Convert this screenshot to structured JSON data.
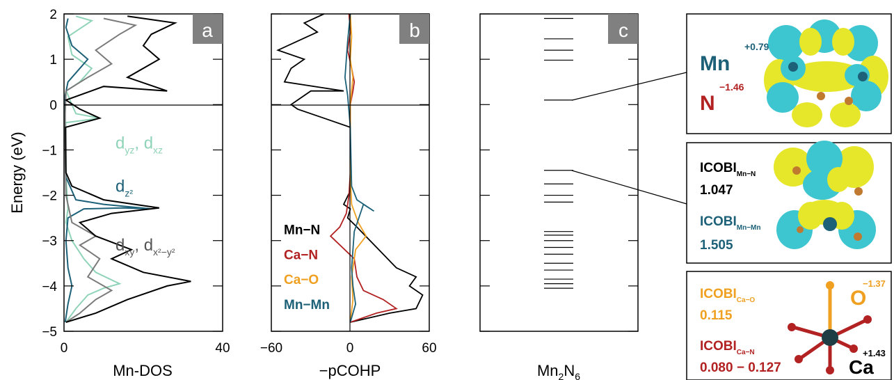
{
  "chart_data": [
    {
      "panel": "a",
      "type": "line",
      "xlabel": "Mn-DOS",
      "ylabel": "Energy (eV)",
      "xlim": [
        0,
        40
      ],
      "ylim": [
        -5,
        2
      ],
      "xticks": [
        "0",
        "40"
      ],
      "yticks": [
        "−5",
        "−4",
        "−3",
        "−2",
        "−1",
        "0",
        "1",
        "2"
      ],
      "fermi_line": 0,
      "colors": {
        "dyz_dxz": "#8fd3b8",
        "dz2": "#1c6178",
        "dxy": "#7a7a7a",
        "total": "#000000"
      },
      "series": [
        {
          "label": "d_yz, d_xz",
          "color": "#8fd3b8",
          "points": [
            [
              0.5,
              -4.8
            ],
            [
              3,
              -4.5
            ],
            [
              6,
              -4.2
            ],
            [
              10,
              -4.05
            ],
            [
              14,
              -3.95
            ],
            [
              8,
              -3.7
            ],
            [
              5,
              -3.4
            ],
            [
              2,
              -3.0
            ],
            [
              0.5,
              -2.6
            ],
            [
              1,
              -2.3
            ],
            [
              0.5,
              -1.6
            ],
            [
              0.4,
              -0.4
            ],
            [
              9,
              -0.3
            ],
            [
              3,
              -0.2
            ],
            [
              1.5,
              0.1
            ],
            [
              0.6,
              0.3
            ],
            [
              4,
              0.5
            ],
            [
              7,
              0.8
            ],
            [
              2,
              1.1
            ],
            [
              1,
              1.5
            ],
            [
              7,
              1.85
            ],
            [
              3,
              1.95
            ]
          ]
        },
        {
          "label": "d_z2",
          "color": "#1c6178",
          "points": [
            [
              0.3,
              -4.8
            ],
            [
              1,
              -4.4
            ],
            [
              2,
              -4.0
            ],
            [
              1,
              -3.6
            ],
            [
              0.5,
              -3.0
            ],
            [
              1,
              -2.5
            ],
            [
              5,
              -2.3
            ],
            [
              15,
              -2.28
            ],
            [
              22,
              -2.3
            ],
            [
              10,
              -2.2
            ],
            [
              3,
              -2.1
            ],
            [
              0.5,
              -1.6
            ],
            [
              0.2,
              -0.5
            ],
            [
              0.3,
              0.2
            ],
            [
              1,
              0.5
            ],
            [
              4,
              0.8
            ],
            [
              6,
              1.0
            ],
            [
              2,
              1.3
            ],
            [
              0.5,
              1.7
            ],
            [
              1,
              1.9
            ]
          ]
        },
        {
          "label": "d_xy, d_x2-y2",
          "color": "#7a7a7a",
          "points": [
            [
              0.5,
              -4.8
            ],
            [
              4,
              -4.6
            ],
            [
              8,
              -4.3
            ],
            [
              12,
              -4.1
            ],
            [
              6,
              -3.8
            ],
            [
              9,
              -3.4
            ],
            [
              4,
              -3.1
            ],
            [
              8,
              -2.9
            ],
            [
              2,
              -2.6
            ],
            [
              0.5,
              -2.0
            ],
            [
              0.3,
              -1.0
            ],
            [
              0.3,
              -0.2
            ],
            [
              0.5,
              0.3
            ],
            [
              6,
              0.6
            ],
            [
              12,
              0.9
            ],
            [
              8,
              1.2
            ],
            [
              14,
              1.55
            ],
            [
              18,
              1.75
            ],
            [
              10,
              1.9
            ]
          ]
        },
        {
          "label": "total",
          "color": "#000000",
          "points": [
            [
              0.5,
              -4.8
            ],
            [
              8,
              -4.6
            ],
            [
              16,
              -4.3
            ],
            [
              26,
              -4.0
            ],
            [
              32,
              -3.9
            ],
            [
              20,
              -3.7
            ],
            [
              12,
              -3.4
            ],
            [
              17,
              -3.2
            ],
            [
              8,
              -2.9
            ],
            [
              4,
              -2.6
            ],
            [
              12,
              -2.4
            ],
            [
              24,
              -2.28
            ],
            [
              10,
              -2.1
            ],
            [
              2,
              -1.8
            ],
            [
              0.5,
              -1.5
            ],
            [
              0.4,
              -0.5
            ],
            [
              9,
              -0.3
            ],
            [
              4,
              -0.1
            ],
            [
              0.5,
              0.1
            ],
            [
              10,
              0.4
            ],
            [
              26,
              0.3
            ],
            [
              16,
              0.6
            ],
            [
              24,
              1.0
            ],
            [
              20,
              1.3
            ],
            [
              22,
              1.55
            ],
            [
              28,
              1.8
            ],
            [
              16,
              1.95
            ]
          ]
        }
      ],
      "labels": [
        {
          "base": "d",
          "sub1": "yz",
          "sep": ", d",
          "sub2": "xz",
          "color": "#8fd3b8",
          "x": 14,
          "y": -0.85
        },
        {
          "base": "d",
          "sub1": "z²",
          "sep": "",
          "sub2": "",
          "color": "#1c6178",
          "x": 14,
          "y": -1.8
        },
        {
          "base": "d",
          "sub1": "xy",
          "sep": ", d",
          "sub2": "x²−y²",
          "color": "#555555",
          "x": 14,
          "y": -3.1
        }
      ]
    },
    {
      "panel": "b",
      "type": "line",
      "xlabel": "−pCOHP",
      "xlim": [
        -60,
        60
      ],
      "ylim": [
        -5,
        2
      ],
      "xticks": [
        "−60",
        "0",
        "60"
      ],
      "fermi_line": 0,
      "series": [
        {
          "name": "Mn−N",
          "color": "#000000",
          "points": [
            [
              0,
              -4.8
            ],
            [
              30,
              -4.6
            ],
            [
              50,
              -4.5
            ],
            [
              55,
              -4.2
            ],
            [
              45,
              -4.0
            ],
            [
              50,
              -3.8
            ],
            [
              35,
              -3.6
            ],
            [
              25,
              -3.3
            ],
            [
              15,
              -3.0
            ],
            [
              5,
              -2.7
            ],
            [
              -2,
              -2.5
            ],
            [
              0,
              -2.3
            ],
            [
              -5,
              -2.2
            ],
            [
              0,
              -1.9
            ],
            [
              0,
              -0.5
            ],
            [
              -20,
              -0.3
            ],
            [
              -40,
              -0.1
            ],
            [
              -45,
              0.0
            ],
            [
              -30,
              0.3
            ],
            [
              -5,
              0.3
            ],
            [
              -50,
              0.5
            ],
            [
              -45,
              0.8
            ],
            [
              -35,
              1.0
            ],
            [
              -55,
              1.2
            ],
            [
              -40,
              1.4
            ],
            [
              -25,
              1.6
            ],
            [
              -35,
              1.8
            ],
            [
              -20,
              2.0
            ]
          ]
        },
        {
          "name": "Ca−N",
          "color": "#b22222",
          "points": [
            [
              0,
              -4.8
            ],
            [
              20,
              -4.6
            ],
            [
              35,
              -4.5
            ],
            [
              25,
              -4.3
            ],
            [
              10,
              -4.1
            ],
            [
              5,
              -3.8
            ],
            [
              3,
              -3.4
            ],
            [
              -15,
              -2.9
            ],
            [
              -8,
              -2.7
            ],
            [
              -3,
              -2.4
            ],
            [
              -1,
              -2.0
            ],
            [
              0,
              -1.5
            ],
            [
              0,
              0.0
            ],
            [
              2,
              0.3
            ],
            [
              3,
              0.5
            ],
            [
              1,
              0.8
            ],
            [
              -2,
              1.2
            ],
            [
              0,
              1.6
            ],
            [
              -1,
              2.0
            ]
          ]
        },
        {
          "name": "Ca−O",
          "color": "#f0a020",
          "points": [
            [
              0,
              -4.8
            ],
            [
              2,
              -4.3
            ],
            [
              1,
              -3.8
            ],
            [
              4,
              -3.2
            ],
            [
              12,
              -2.9
            ],
            [
              6,
              -2.6
            ],
            [
              1,
              -2.2
            ],
            [
              0,
              -1.6
            ],
            [
              0,
              0.0
            ],
            [
              1,
              0.3
            ],
            [
              2,
              0.6
            ],
            [
              0,
              1.0
            ],
            [
              1,
              1.5
            ],
            [
              0,
              2.0
            ]
          ]
        },
        {
          "name": "Mn−Mn",
          "color": "#1c6178",
          "points": [
            [
              0,
              -4.8
            ],
            [
              4,
              -4.4
            ],
            [
              2,
              -4.0
            ],
            [
              1,
              -3.6
            ],
            [
              3,
              -2.8
            ],
            [
              10,
              -2.2
            ],
            [
              18,
              -2.35
            ],
            [
              5,
              -2.1
            ],
            [
              1,
              -1.8
            ],
            [
              0,
              -0.5
            ],
            [
              -2,
              0.2
            ],
            [
              -4,
              0.6
            ],
            [
              -3,
              1.0
            ],
            [
              -2,
              1.4
            ],
            [
              0,
              2.0
            ]
          ]
        }
      ],
      "legend": [
        {
          "name": "Mn−N",
          "color": "#000000",
          "y": -2.75
        },
        {
          "name": "Ca−N",
          "color": "#b22222",
          "y": -3.3
        },
        {
          "name": "Ca−O",
          "color": "#f0a020",
          "y": -3.85
        },
        {
          "name": "Mn−Mn",
          "color": "#1c6178",
          "y": -4.4
        }
      ]
    },
    {
      "panel": "c",
      "type": "levels",
      "xlabel_base": "Mn",
      "xlabel_sub1": "2",
      "xlabel_mid": "N",
      "xlabel_sub2": "6",
      "ylim": [
        -5,
        2
      ],
      "levels": [
        1.9,
        1.45,
        1.2,
        0.98,
        0.1,
        -1.45,
        -1.75,
        -2.0,
        -2.15,
        -2.8,
        -2.88,
        -3.0,
        -3.15,
        -3.3,
        -3.5,
        -3.65,
        -3.85,
        -3.95,
        -4.05
      ]
    }
  ],
  "annotations": {
    "box1": {
      "mn": "Mn",
      "mn_charge": "+0.79",
      "n": "N",
      "n_charge": "−1.46"
    },
    "box2": {
      "label1": "ICOBI",
      "label1_sub": "Mn−N",
      "value1": "1.047",
      "label2": "ICOBI",
      "label2_sub": "Mn−Mn",
      "value2": "1.505"
    },
    "box3": {
      "label1": "ICOBI",
      "label1_sub": "Ca−O",
      "value1": "0.115",
      "label2": "ICOBI",
      "label2_sub": "Ca−N",
      "value2": "0.080 − 0.127",
      "o": "O",
      "o_charge": "−1.37",
      "ca": "Ca",
      "ca_charge": "+1.43"
    },
    "colors": {
      "mn": "#1c6178",
      "n": "#b22222",
      "o": "#f0a020",
      "lobe_yellow": "#e6e62a",
      "lobe_cyan": "#3ec6d0"
    }
  }
}
